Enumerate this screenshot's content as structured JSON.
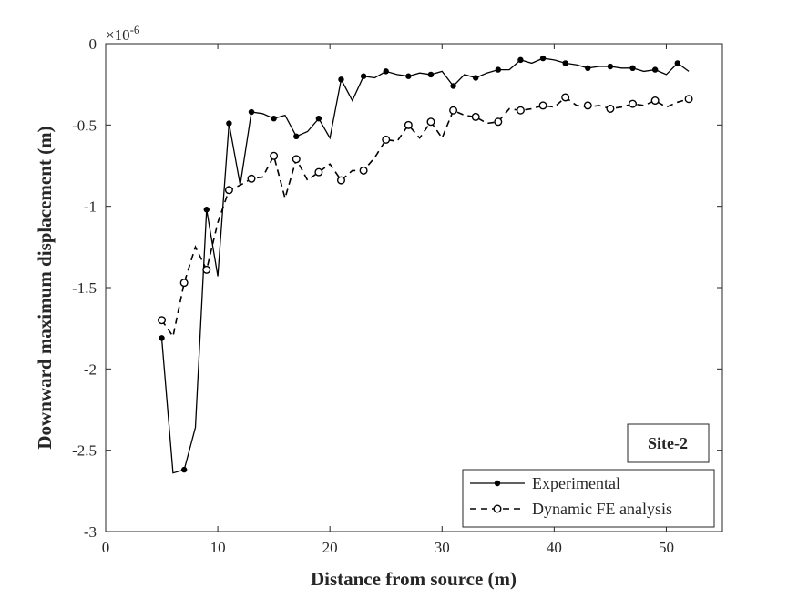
{
  "chart_data": {
    "type": "line",
    "xlabel": "Distance from source (m)",
    "ylabel": "Downward maximum displacement (m)",
    "y_exponent_label": "×10",
    "y_exponent_power": "-6",
    "xlim": [
      0,
      55
    ],
    "ylim": [
      -3,
      0
    ],
    "xticks": [
      0,
      10,
      20,
      30,
      40,
      50
    ],
    "xtick_labels": [
      "0",
      "10",
      "20",
      "30",
      "40",
      "50"
    ],
    "yticks": [
      0,
      -0.5,
      -1,
      -1.5,
      -2,
      -2.5,
      -3
    ],
    "ytick_labels": [
      "0",
      "-0.5",
      "-1",
      "-1.5",
      "-2",
      "-2.5",
      "-3"
    ],
    "grid": false,
    "legend_position": "bottom-right",
    "annotation": "Site-2",
    "series": [
      {
        "name": "Experimental",
        "line_style": "solid",
        "marker": "filled-circle",
        "color": "#000000",
        "x": [
          5,
          6,
          7,
          8,
          9,
          10,
          11,
          12,
          13,
          14,
          15,
          16,
          17,
          18,
          19,
          20,
          21,
          22,
          23,
          24,
          25,
          26,
          27,
          28,
          29,
          30,
          31,
          32,
          33,
          34,
          35,
          36,
          37,
          38,
          39,
          40,
          41,
          42,
          43,
          44,
          45,
          46,
          47,
          48,
          49,
          50,
          51,
          52
        ],
        "y": [
          -1.81,
          -2.64,
          -2.62,
          -2.36,
          -1.02,
          -1.43,
          -0.49,
          -0.87,
          -0.42,
          -0.43,
          -0.46,
          -0.44,
          -0.57,
          -0.54,
          -0.46,
          -0.58,
          -0.22,
          -0.35,
          -0.2,
          -0.21,
          -0.17,
          -0.19,
          -0.2,
          -0.18,
          -0.19,
          -0.17,
          -0.26,
          -0.19,
          -0.21,
          -0.18,
          -0.16,
          -0.16,
          -0.1,
          -0.12,
          -0.09,
          -0.1,
          -0.12,
          -0.13,
          -0.15,
          -0.14,
          -0.14,
          -0.15,
          -0.15,
          -0.17,
          -0.16,
          -0.19,
          -0.12,
          -0.17
        ],
        "marker_x": [
          5,
          7,
          9,
          11,
          13,
          15,
          17,
          19,
          21,
          23,
          25,
          27,
          29,
          31,
          33,
          35,
          37,
          39,
          41,
          43,
          45,
          47,
          49,
          51
        ],
        "marker_y": [
          -1.81,
          -2.62,
          -1.02,
          -0.49,
          -0.42,
          -0.46,
          -0.57,
          -0.46,
          -0.22,
          -0.2,
          -0.17,
          -0.2,
          -0.19,
          -0.26,
          -0.21,
          -0.16,
          -0.1,
          -0.09,
          -0.12,
          -0.15,
          -0.14,
          -0.15,
          -0.16,
          -0.12
        ]
      },
      {
        "name": "Dynamic FE analysis",
        "line_style": "dashed",
        "marker": "open-circle",
        "color": "#000000",
        "x": [
          5,
          6,
          7,
          8,
          9,
          10,
          11,
          12,
          13,
          14,
          15,
          16,
          17,
          18,
          19,
          20,
          21,
          22,
          23,
          24,
          25,
          26,
          27,
          28,
          29,
          30,
          31,
          32,
          33,
          34,
          35,
          36,
          37,
          38,
          39,
          40,
          41,
          42,
          43,
          44,
          45,
          46,
          47,
          48,
          49,
          50,
          51,
          52
        ],
        "y": [
          -1.7,
          -1.8,
          -1.47,
          -1.25,
          -1.39,
          -1.1,
          -0.9,
          -0.87,
          -0.83,
          -0.82,
          -0.69,
          -0.95,
          -0.71,
          -0.84,
          -0.79,
          -0.74,
          -0.84,
          -0.78,
          -0.78,
          -0.7,
          -0.59,
          -0.6,
          -0.5,
          -0.58,
          -0.48,
          -0.58,
          -0.41,
          -0.44,
          -0.45,
          -0.49,
          -0.48,
          -0.4,
          -0.41,
          -0.4,
          -0.38,
          -0.39,
          -0.33,
          -0.38,
          -0.39,
          -0.38,
          -0.4,
          -0.39,
          -0.37,
          -0.38,
          -0.35,
          -0.39,
          -0.36,
          -0.34
        ],
        "marker_x": [
          5,
          7,
          9,
          11,
          13,
          15,
          17,
          19,
          21,
          23,
          25,
          27,
          29,
          31,
          33,
          35,
          37,
          39,
          41,
          43,
          45,
          47,
          49,
          52
        ],
        "marker_y": [
          -1.7,
          -1.47,
          -1.39,
          -0.9,
          -0.83,
          -0.69,
          -0.71,
          -0.79,
          -0.84,
          -0.78,
          -0.59,
          -0.5,
          -0.48,
          -0.41,
          -0.45,
          -0.48,
          -0.41,
          -0.38,
          -0.33,
          -0.38,
          -0.4,
          -0.37,
          -0.35,
          -0.34
        ]
      }
    ]
  }
}
